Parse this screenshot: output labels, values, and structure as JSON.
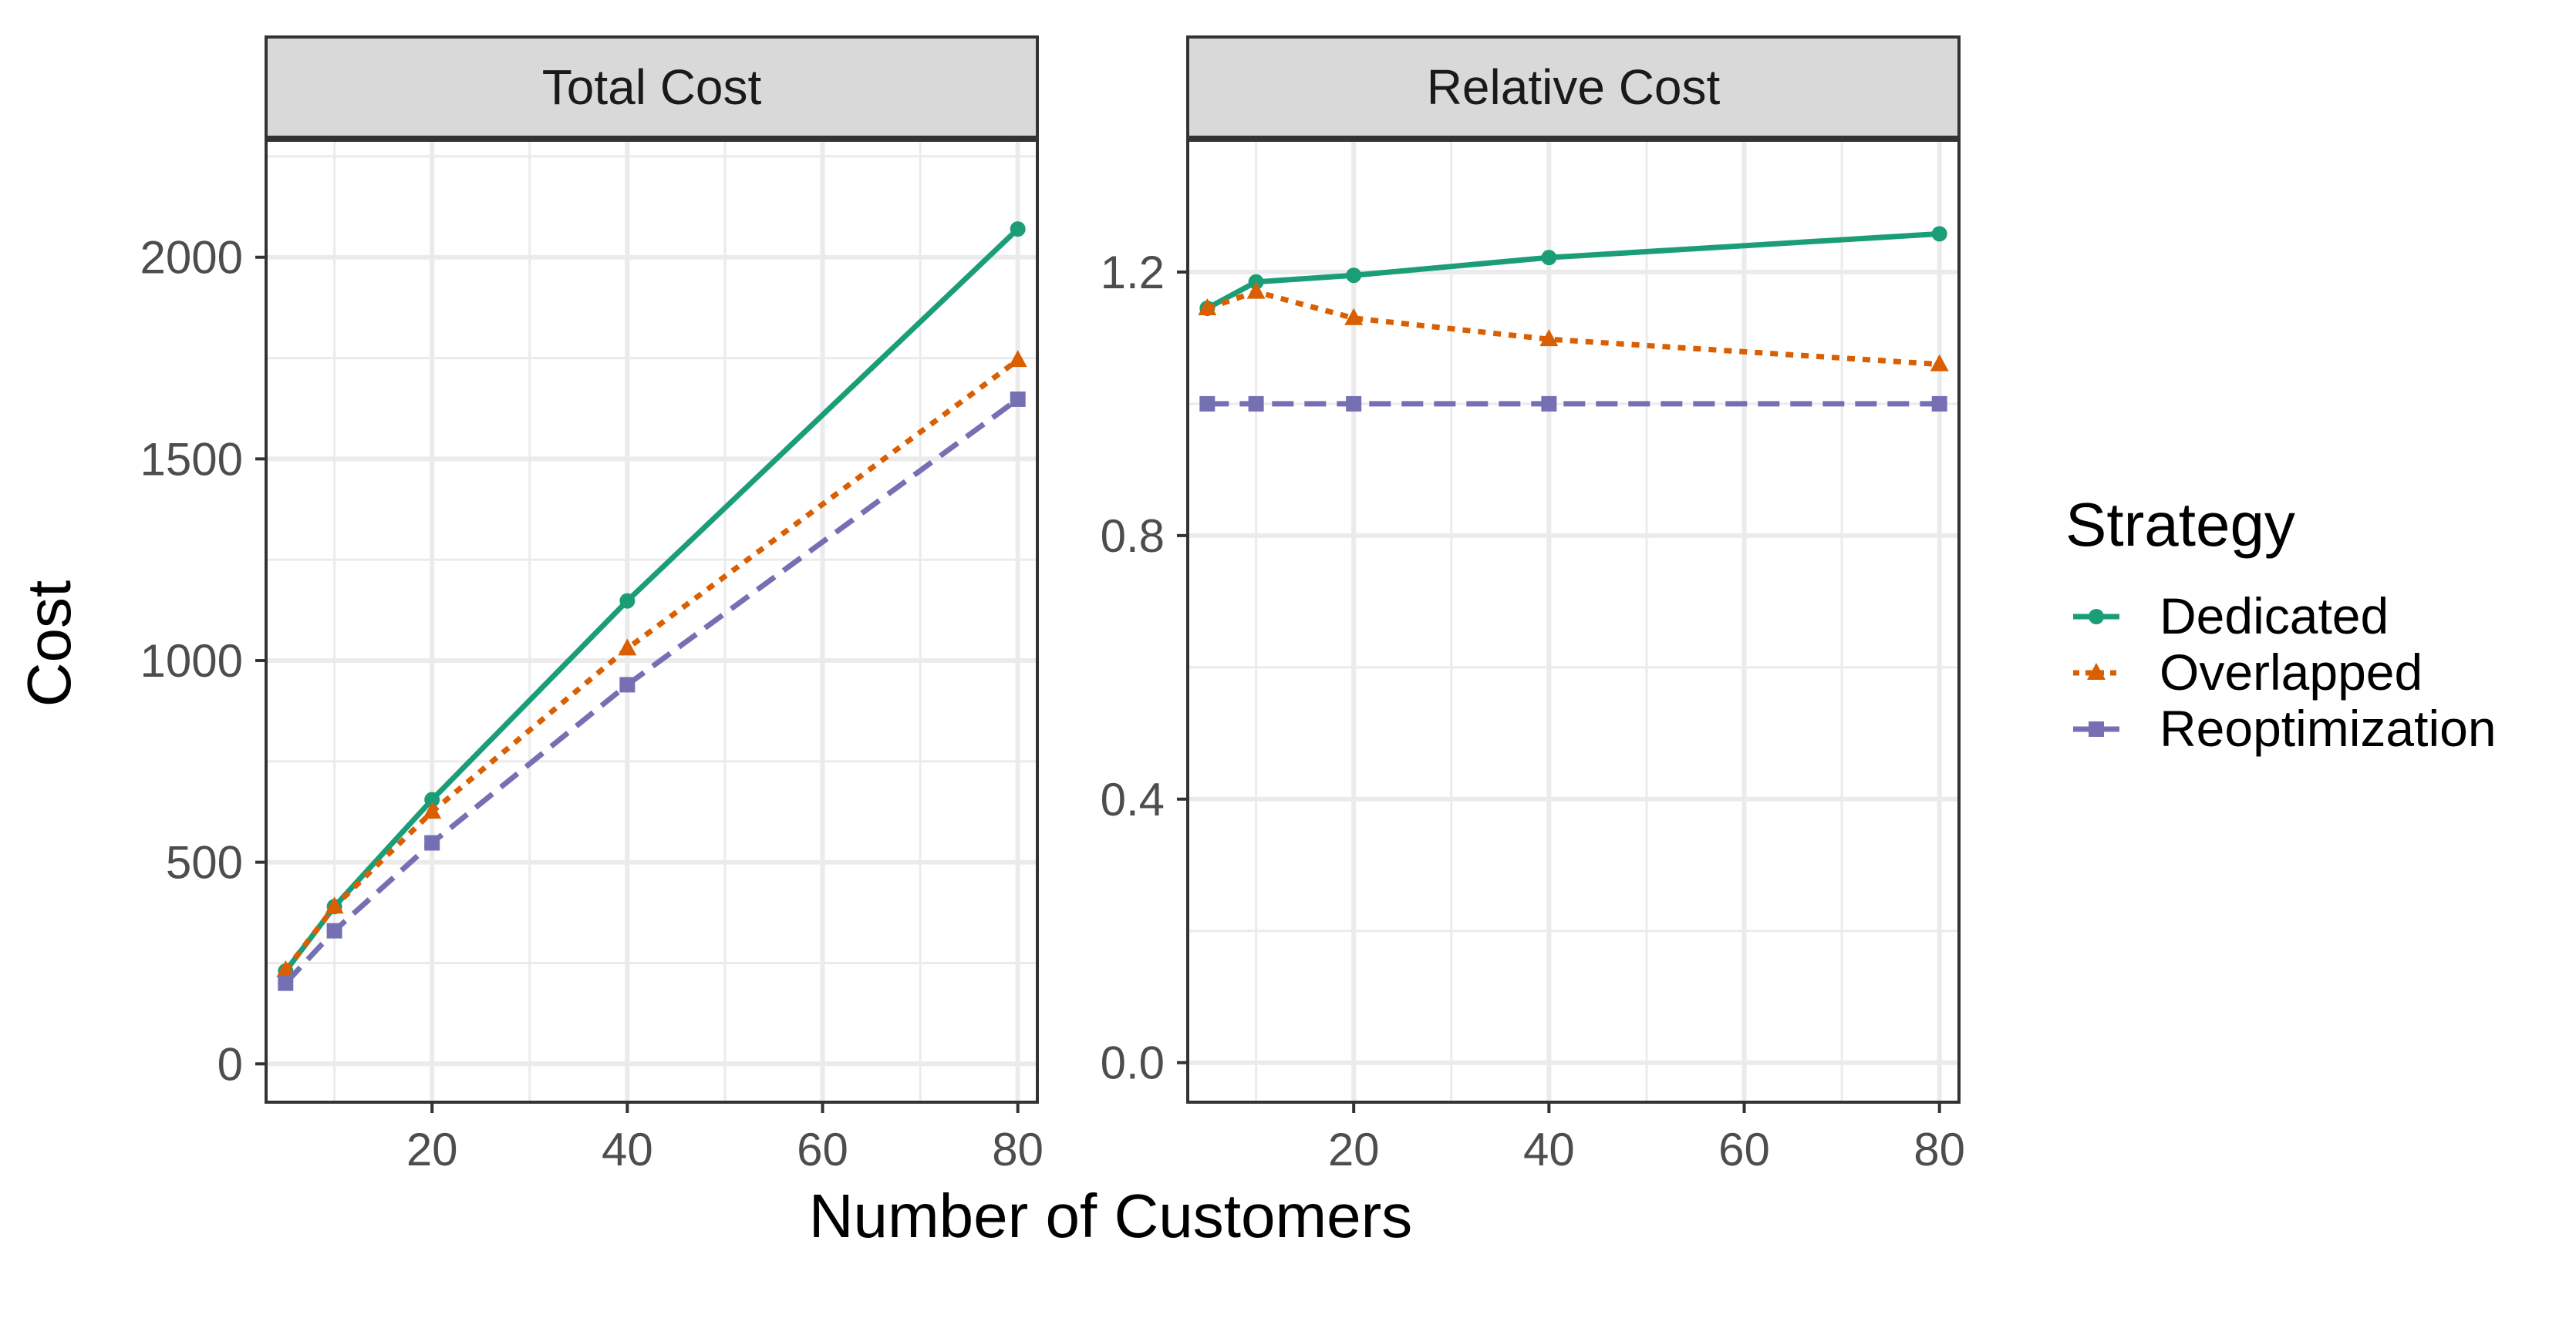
{
  "figure": {
    "ylabel": "Cost",
    "xlabel": "Number of Customers",
    "legend_title": "Strategy",
    "legend_position": "right"
  },
  "colors": {
    "Dedicated": "#1b9e77",
    "Overlapped": "#d95f02",
    "Reoptimization": "#7570b3",
    "strip_fill": "#d9d9d9",
    "grid": "#ebebeb",
    "text": "#4d4d4d"
  },
  "chart_data": [
    {
      "type": "line",
      "title": "Total Cost",
      "x": [
        5,
        10,
        20,
        40,
        80
      ],
      "xlim": [
        3,
        82
      ],
      "ylim": [
        -95,
        2290
      ],
      "xticks": [
        20,
        40,
        60,
        80
      ],
      "yticks": [
        0,
        500,
        1000,
        1500,
        2000
      ],
      "tick_labels_x": [
        "20",
        "40",
        "60",
        "80"
      ],
      "tick_labels_y": [
        "0",
        "500",
        "1000",
        "1500",
        "2000"
      ],
      "grid": true,
      "series": [
        {
          "name": "Dedicated",
          "marker": "circle",
          "linestyle": "solid",
          "values": [
            230,
            390,
            655,
            1148,
            2070
          ]
        },
        {
          "name": "Overlapped",
          "marker": "triangle",
          "linestyle": "dotted",
          "values": [
            232,
            390,
            625,
            1030,
            1745
          ]
        },
        {
          "name": "Reoptimization",
          "marker": "square",
          "linestyle": "dashed",
          "values": [
            200,
            330,
            548,
            940,
            1648
          ]
        }
      ]
    },
    {
      "type": "line",
      "title": "Relative Cost",
      "x": [
        5,
        10,
        20,
        40,
        80
      ],
      "xlim": [
        3,
        82
      ],
      "ylim": [
        -0.06,
        1.4
      ],
      "xticks": [
        20,
        40,
        60,
        80
      ],
      "yticks": [
        0.0,
        0.4,
        0.8,
        1.2
      ],
      "tick_labels_x": [
        "20",
        "40",
        "60",
        "80"
      ],
      "tick_labels_y": [
        "0.0",
        "0.4",
        "0.8",
        "1.2"
      ],
      "grid": true,
      "series": [
        {
          "name": "Dedicated",
          "marker": "circle",
          "linestyle": "solid",
          "values": [
            1.145,
            1.185,
            1.195,
            1.222,
            1.258
          ]
        },
        {
          "name": "Overlapped",
          "marker": "triangle",
          "linestyle": "dotted",
          "values": [
            1.145,
            1.17,
            1.13,
            1.098,
            1.06
          ]
        },
        {
          "name": "Reoptimization",
          "marker": "square",
          "linestyle": "dashed",
          "values": [
            1.0,
            1.0,
            1.0,
            1.0,
            1.0
          ]
        }
      ]
    }
  ]
}
